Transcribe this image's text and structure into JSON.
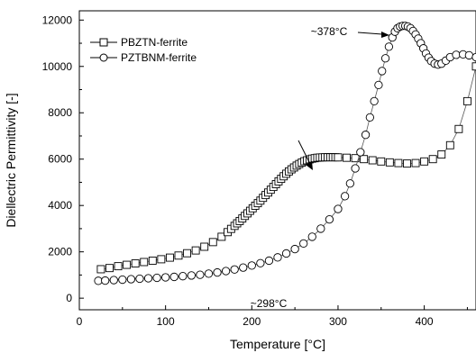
{
  "chart_data": {
    "type": "scatter",
    "title": "",
    "xlabel": "Temperature [°C]",
    "ylabel": "Diellectric Permittivity [-]",
    "xlim": [
      0,
      460
    ],
    "ylim": [
      -500,
      12400
    ],
    "xticks": [
      0,
      100,
      200,
      300,
      400
    ],
    "yticks": [
      0,
      2000,
      4000,
      6000,
      8000,
      10000,
      12000
    ],
    "grid": false,
    "legend_position": "top-left",
    "series": [
      {
        "name": "PBZTN-ferrite",
        "marker": "square",
        "x": [
          25,
          35,
          45,
          55,
          65,
          75,
          85,
          95,
          105,
          115,
          125,
          135,
          145,
          155,
          165,
          172,
          176,
          180,
          183,
          186,
          189,
          192,
          195,
          198,
          201,
          204,
          207,
          210,
          213,
          216,
          219,
          222,
          225,
          228,
          231,
          234,
          237,
          240,
          243,
          246,
          249,
          252,
          255,
          258,
          261,
          264,
          267,
          270,
          273,
          276,
          279,
          282,
          285,
          288,
          291,
          294,
          297,
          300,
          310,
          320,
          330,
          340,
          350,
          360,
          370,
          380,
          390,
          400,
          410,
          420,
          430,
          440,
          450,
          460
        ],
        "y": [
          1250,
          1300,
          1380,
          1440,
          1500,
          1560,
          1620,
          1680,
          1750,
          1840,
          1940,
          2060,
          2220,
          2420,
          2650,
          2850,
          2990,
          3120,
          3230,
          3330,
          3440,
          3550,
          3660,
          3770,
          3880,
          3990,
          4100,
          4210,
          4330,
          4450,
          4560,
          4680,
          4800,
          4920,
          5040,
          5150,
          5260,
          5370,
          5470,
          5560,
          5640,
          5720,
          5790,
          5850,
          5910,
          5950,
          5990,
          6020,
          6040,
          6060,
          6070,
          6075,
          6080,
          6080,
          6080,
          6080,
          6080,
          6075,
          6060,
          6040,
          6000,
          5950,
          5900,
          5860,
          5830,
          5810,
          5830,
          5900,
          6000,
          6200,
          6600,
          7300,
          8500,
          10000
        ]
      },
      {
        "name": "PZTBNM-ferrite",
        "marker": "circle",
        "x": [
          22,
          30,
          40,
          50,
          60,
          70,
          80,
          90,
          100,
          110,
          120,
          130,
          140,
          150,
          160,
          170,
          180,
          190,
          200,
          210,
          220,
          230,
          240,
          250,
          260,
          270,
          280,
          290,
          300,
          308,
          314,
          320,
          326,
          332,
          337,
          342,
          347,
          351,
          355,
          359,
          363,
          366,
          369,
          372,
          375,
          378,
          381,
          384,
          387,
          390,
          393,
          396,
          399,
          402,
          405,
          408,
          412,
          416,
          420,
          425,
          430,
          437,
          445,
          452,
          460
        ],
        "y": [
          750,
          760,
          780,
          800,
          820,
          840,
          860,
          880,
          900,
          920,
          950,
          980,
          1010,
          1060,
          1110,
          1170,
          1240,
          1320,
          1410,
          1510,
          1620,
          1760,
          1930,
          2120,
          2360,
          2650,
          3000,
          3400,
          3850,
          4400,
          4950,
          5600,
          6300,
          7050,
          7800,
          8500,
          9200,
          9800,
          10350,
          10850,
          11250,
          11500,
          11650,
          11720,
          11750,
          11750,
          11720,
          11650,
          11530,
          11380,
          11200,
          11000,
          10780,
          10560,
          10380,
          10230,
          10120,
          10080,
          10120,
          10250,
          10400,
          10500,
          10520,
          10480,
          10400
        ]
      }
    ],
    "annotations": [
      {
        "text": "~298°C",
        "at_x": 298,
        "at_y": 6080
      },
      {
        "text": "~378°C",
        "at_x": 370,
        "at_y": 11750
      }
    ]
  }
}
